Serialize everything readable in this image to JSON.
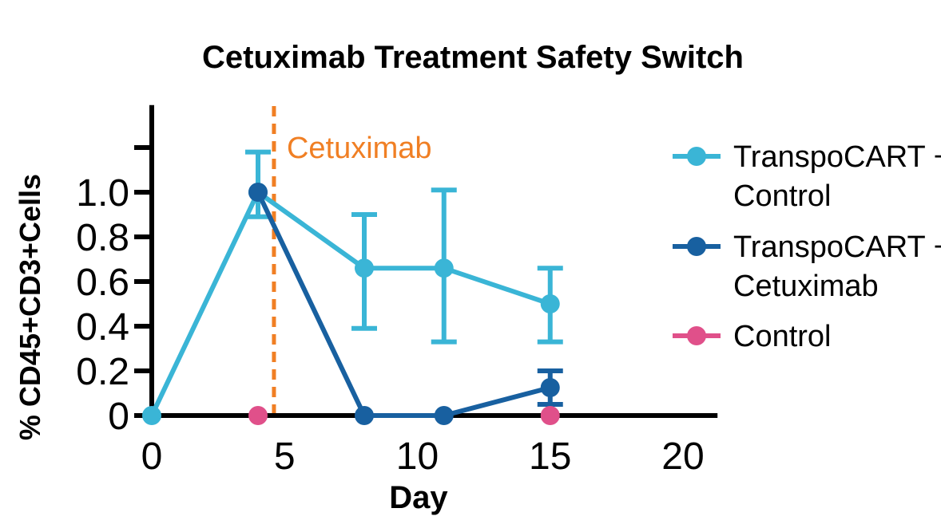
{
  "chart_data": {
    "type": "line",
    "title": "Cetuximab Treatment Safety Switch",
    "xlabel": "Day",
    "ylabel": "% CD45+CD3+Cells",
    "xlim": [
      0,
      21.3
    ],
    "ylim": [
      0,
      1.39
    ],
    "xticks": [
      0,
      5,
      10,
      15,
      20
    ],
    "xtick_labels": [
      "0",
      "5",
      "10",
      "15",
      "20"
    ],
    "yticks": [
      0,
      0.2,
      0.4,
      0.6,
      0.8,
      1.0,
      1.2
    ],
    "ytick_labels": [
      "0",
      "0.2",
      "0.4",
      "0.6",
      "0.8",
      "1.0",
      ""
    ],
    "grid": false,
    "legend_position": "right",
    "annotation": {
      "label": "Cetuximab",
      "x": 4.6,
      "color": "#F07F24",
      "style": "dashed vertical line"
    },
    "series": [
      {
        "name": "TranspoCART + Control",
        "legend_lines": [
          "TranspoCART +",
          "Control"
        ],
        "color": "#3AB5D6",
        "x": [
          0,
          4,
          8,
          11,
          15
        ],
        "y": [
          0,
          1.0,
          0.66,
          0.66,
          0.5
        ],
        "error_low": [
          null,
          0.89,
          0.39,
          0.33,
          0.33
        ],
        "error_high": [
          null,
          1.18,
          0.9,
          1.01,
          0.66
        ]
      },
      {
        "name": "TranspoCART + Cetuximab",
        "legend_lines": [
          "TranspoCART +",
          "Cetuximab"
        ],
        "color": "#1860A0",
        "x": [
          4,
          8,
          11,
          15
        ],
        "y": [
          1.0,
          0,
          0,
          0.125
        ],
        "error_low": [
          null,
          null,
          null,
          0.05
        ],
        "error_high": [
          null,
          null,
          null,
          0.2
        ]
      },
      {
        "name": "Control",
        "legend_lines": [
          "Control"
        ],
        "color": "#E0508A",
        "x": [
          4,
          15
        ],
        "y": [
          0,
          0
        ],
        "error_low": [
          null,
          null
        ],
        "error_high": [
          null,
          null
        ]
      }
    ]
  }
}
